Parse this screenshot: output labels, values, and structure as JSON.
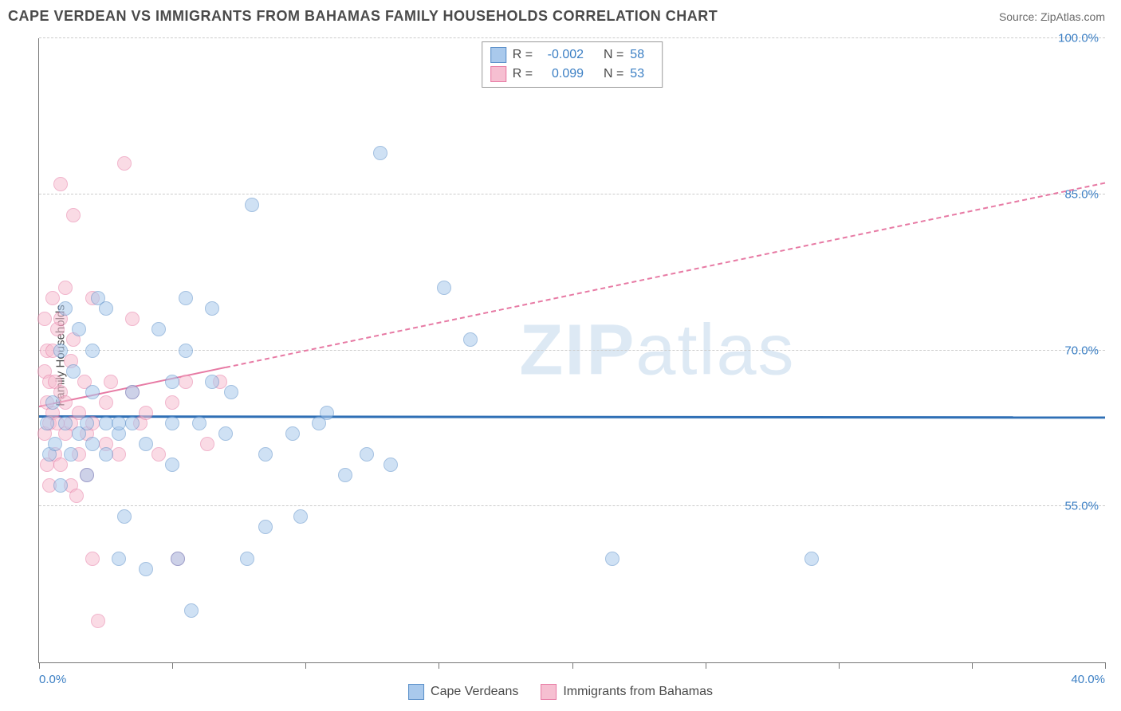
{
  "header": {
    "title": "CAPE VERDEAN VS IMMIGRANTS FROM BAHAMAS FAMILY HOUSEHOLDS CORRELATION CHART",
    "source": "Source: ZipAtlas.com"
  },
  "y_axis": {
    "label": "Family Households"
  },
  "watermark": {
    "text_bold": "ZIP",
    "text_thin": "atlas"
  },
  "chart": {
    "type": "scatter",
    "xlim": [
      0,
      40
    ],
    "ylim": [
      40,
      100
    ],
    "y_ticks": [
      55,
      70,
      85,
      100
    ],
    "y_tick_labels": [
      "55.0%",
      "70.0%",
      "85.0%",
      "100.0%"
    ],
    "x_ticks": [
      0,
      5,
      10,
      15,
      20,
      25,
      30,
      35,
      40
    ],
    "x_tick_labels_shown": {
      "0": "0.0%",
      "40": "40.0%"
    },
    "background_color": "#ffffff",
    "grid_color": "#cccccc",
    "axis_color": "#777777",
    "tick_label_color": "#3b7fc4",
    "marker_radius": 9,
    "marker_opacity": 0.55,
    "marker_stroke_width": 1
  },
  "series": {
    "a": {
      "label": "Cape Verdeans",
      "fill": "#a9c9ec",
      "stroke": "#5a8fc9",
      "R": "-0.002",
      "N": "58",
      "regression": {
        "x1": 0,
        "y1": 63.5,
        "x2": 40,
        "y2": 63.4,
        "color": "#2f6fb5",
        "width": 3,
        "dash": false,
        "solid_until_x": 40
      },
      "points": [
        [
          0.3,
          63
        ],
        [
          0.4,
          60
        ],
        [
          0.5,
          65
        ],
        [
          0.6,
          61
        ],
        [
          0.8,
          70
        ],
        [
          0.8,
          57
        ],
        [
          1.0,
          63
        ],
        [
          1.0,
          74
        ],
        [
          1.2,
          60
        ],
        [
          1.3,
          68
        ],
        [
          1.5,
          62
        ],
        [
          1.5,
          72
        ],
        [
          1.8,
          63
        ],
        [
          1.8,
          58
        ],
        [
          2.0,
          66
        ],
        [
          2.0,
          70
        ],
        [
          2.0,
          61
        ],
        [
          2.2,
          75
        ],
        [
          2.5,
          74
        ],
        [
          2.5,
          63
        ],
        [
          2.5,
          60
        ],
        [
          3.0,
          62
        ],
        [
          3.0,
          50
        ],
        [
          3.0,
          63
        ],
        [
          3.2,
          54
        ],
        [
          3.5,
          66
        ],
        [
          3.5,
          63
        ],
        [
          4.0,
          61
        ],
        [
          4.0,
          49
        ],
        [
          4.5,
          72
        ],
        [
          5.0,
          67
        ],
        [
          5.0,
          63
        ],
        [
          5.0,
          59
        ],
        [
          5.2,
          50
        ],
        [
          5.5,
          70
        ],
        [
          5.5,
          75
        ],
        [
          5.7,
          45
        ],
        [
          6.0,
          63
        ],
        [
          6.5,
          67
        ],
        [
          6.5,
          74
        ],
        [
          7.0,
          62
        ],
        [
          7.2,
          66
        ],
        [
          7.8,
          50
        ],
        [
          8.0,
          84
        ],
        [
          8.5,
          60
        ],
        [
          8.5,
          53
        ],
        [
          9.5,
          62
        ],
        [
          9.8,
          54
        ],
        [
          10.5,
          63
        ],
        [
          10.8,
          64
        ],
        [
          11.5,
          58
        ],
        [
          12.3,
          60
        ],
        [
          12.8,
          89
        ],
        [
          13.2,
          59
        ],
        [
          15.2,
          76
        ],
        [
          16.2,
          71
        ],
        [
          21.5,
          50
        ],
        [
          29.0,
          50
        ]
      ]
    },
    "b": {
      "label": "Immigrants from Bahamas",
      "fill": "#f6bfd1",
      "stroke": "#e77aa4",
      "R": "0.099",
      "N": "53",
      "regression": {
        "x1": 0,
        "y1": 64.5,
        "x2": 40,
        "y2": 86,
        "color": "#e77aa4",
        "width": 2.5,
        "dash": true,
        "solid_until_x": 7
      },
      "points": [
        [
          0.2,
          62
        ],
        [
          0.2,
          68
        ],
        [
          0.2,
          73
        ],
        [
          0.3,
          65
        ],
        [
          0.3,
          59
        ],
        [
          0.3,
          70
        ],
        [
          0.4,
          67
        ],
        [
          0.4,
          63
        ],
        [
          0.4,
          57
        ],
        [
          0.5,
          70
        ],
        [
          0.5,
          75
        ],
        [
          0.5,
          64
        ],
        [
          0.6,
          60
        ],
        [
          0.6,
          67
        ],
        [
          0.7,
          72
        ],
        [
          0.7,
          63
        ],
        [
          0.8,
          66
        ],
        [
          0.8,
          59
        ],
        [
          0.8,
          86
        ],
        [
          0.8,
          73
        ],
        [
          1.0,
          76
        ],
        [
          1.0,
          65
        ],
        [
          1.0,
          62
        ],
        [
          1.2,
          69
        ],
        [
          1.2,
          57
        ],
        [
          1.2,
          63
        ],
        [
          1.3,
          71
        ],
        [
          1.3,
          83
        ],
        [
          1.4,
          56
        ],
        [
          1.5,
          60
        ],
        [
          1.5,
          64
        ],
        [
          1.7,
          67
        ],
        [
          1.8,
          58
        ],
        [
          1.8,
          62
        ],
        [
          2.0,
          75
        ],
        [
          2.0,
          63
        ],
        [
          2.0,
          50
        ],
        [
          2.2,
          44
        ],
        [
          2.5,
          61
        ],
        [
          2.5,
          65
        ],
        [
          2.7,
          67
        ],
        [
          3.0,
          60
        ],
        [
          3.2,
          88
        ],
        [
          3.5,
          66
        ],
        [
          3.5,
          73
        ],
        [
          3.8,
          63
        ],
        [
          4.0,
          64
        ],
        [
          4.5,
          60
        ],
        [
          5.0,
          65
        ],
        [
          5.2,
          50
        ],
        [
          5.5,
          67
        ],
        [
          6.3,
          61
        ],
        [
          6.8,
          67
        ]
      ]
    }
  },
  "legend_top": {
    "r_label": "R =",
    "n_label": "N ="
  },
  "legend_bottom": {
    "items": [
      "a",
      "b"
    ]
  }
}
